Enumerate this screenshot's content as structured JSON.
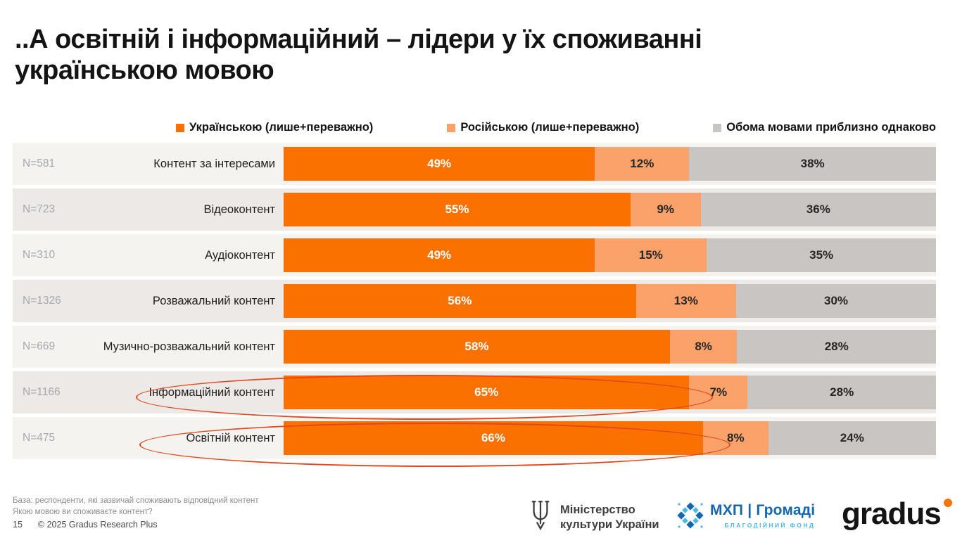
{
  "title": {
    "line1": "..А освітній і інформаційний – лідери у їх споживанні",
    "line2": "українською мовою"
  },
  "legend": [
    {
      "label": "Українською (лише+переважно)",
      "color": "#FA7100"
    },
    {
      "label": "Російською (лише+переважно)",
      "color": "#FBA26A"
    },
    {
      "label": "Обома мовами приблизно однаково",
      "color": "#C9C5C2"
    }
  ],
  "chart_data": {
    "type": "bar",
    "orientation": "horizontal",
    "stacked": true,
    "normalized_rows": true,
    "categories": [
      "Контент за інтересами",
      "Відеоконтент",
      "Аудіоконтент",
      "Розважальний контент",
      "Музично-розважальний контент",
      "Інформаційний контент",
      "Освітній контент"
    ],
    "n_labels": [
      "N=581",
      "N=723",
      "N=310",
      "N=1326",
      "N=669",
      "N=1166",
      "N=475"
    ],
    "series": [
      {
        "name": "Українською (лише+переважно)",
        "color": "#FA7100",
        "text_color": "#FFFFFF",
        "values": [
          49,
          55,
          49,
          56,
          58,
          65,
          66
        ]
      },
      {
        "name": "Російською (лише+переважно)",
        "color": "#FBA26A",
        "text_color": "#262626",
        "values": [
          12,
          9,
          15,
          13,
          8,
          7,
          8
        ]
      },
      {
        "name": "Обома мовами приблизно однаково",
        "color": "#C9C5C2",
        "text_color": "#262626",
        "values": [
          38,
          36,
          35,
          30,
          28,
          28,
          24
        ]
      }
    ],
    "value_suffix": "%",
    "highlighted_categories": [
      "Інформаційний контент",
      "Освітній контент"
    ],
    "highlight_color": "#E2471D",
    "legend_position": "top"
  },
  "footer": {
    "base_note": "База: респонденти, які зазвичай споживають відповідний контент",
    "question": "Якою мовою ви споживаєте контент?",
    "page_number": "15",
    "copyright": "© 2025 Gradus Research Plus"
  },
  "logos": {
    "ministry": {
      "line1": "Міністерство",
      "line2": "культури України"
    },
    "mxp": {
      "name": "МХП | Громаді",
      "caption": "БЛАГОДІЙНИЙ ФОНД"
    },
    "gradus": {
      "name": "gradus"
    }
  }
}
